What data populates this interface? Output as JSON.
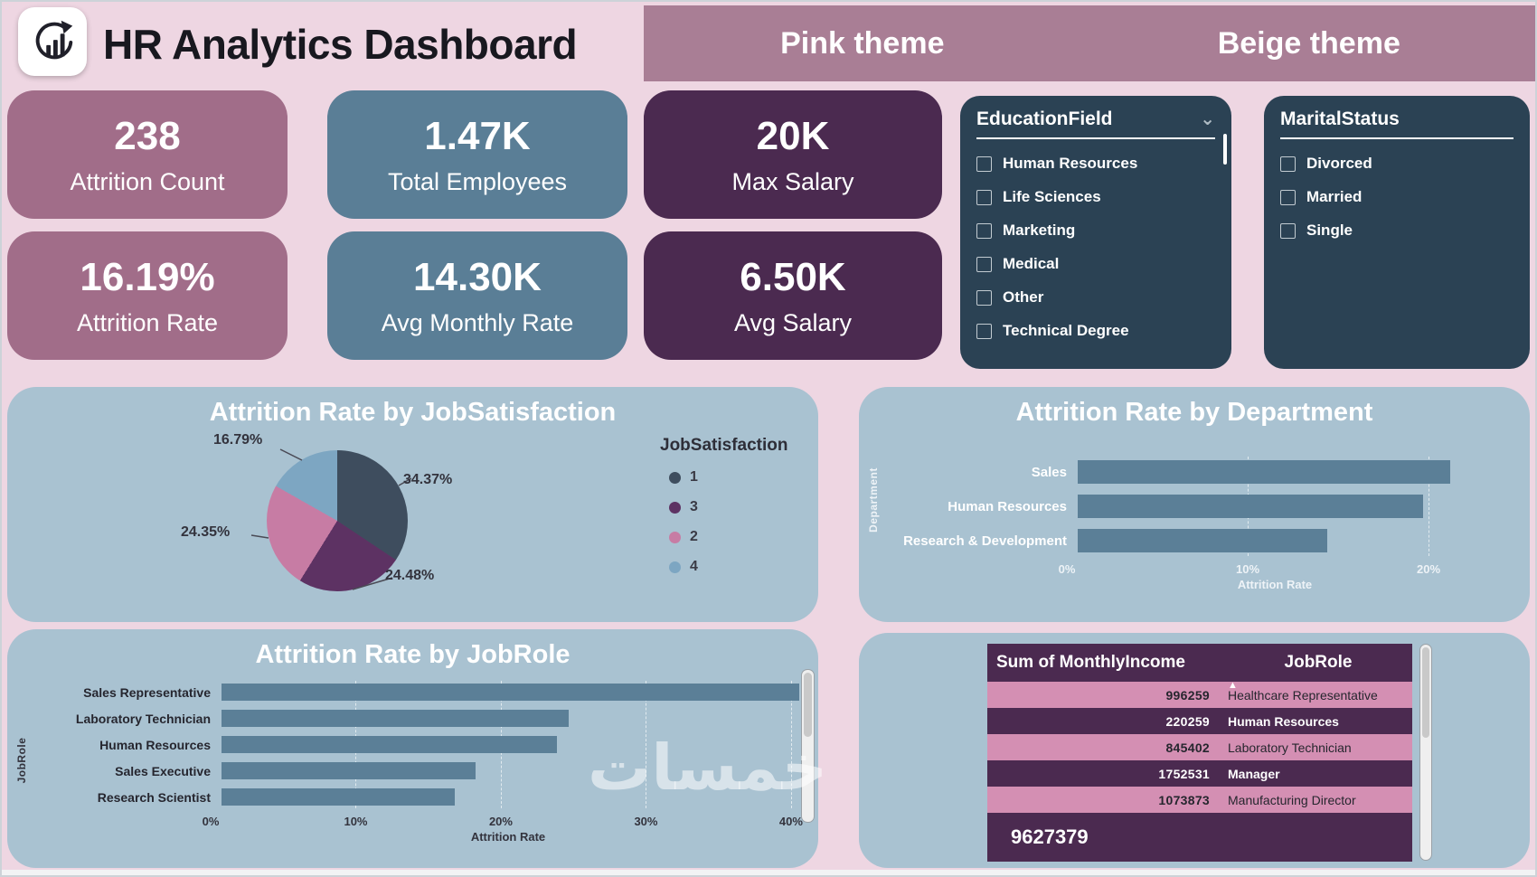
{
  "header": {
    "title": "HR Analytics Dashboard",
    "themes": [
      "Pink theme",
      "Beige theme"
    ]
  },
  "kpis": [
    {
      "value": "238",
      "label": "Attrition Count"
    },
    {
      "value": "1.47K",
      "label": "Total Employees"
    },
    {
      "value": "20K",
      "label": "Max Salary"
    },
    {
      "value": "16.19%",
      "label": "Attrition Rate"
    },
    {
      "value": "14.30K",
      "label": "Avg Monthly Rate"
    },
    {
      "value": "6.50K",
      "label": "Avg Salary"
    }
  ],
  "filters": {
    "education": {
      "title": "EducationField",
      "options": [
        "Human Resources",
        "Life Sciences",
        "Marketing",
        "Medical",
        "Other",
        "Technical Degree"
      ]
    },
    "marital": {
      "title": "MaritalStatus",
      "options": [
        "Divorced",
        "Married",
        "Single"
      ]
    }
  },
  "chart_data": [
    {
      "id": "job_satisfaction_pie",
      "type": "pie",
      "title": "Attrition Rate by JobSatisfaction",
      "legend_title": "JobSatisfaction",
      "slices": [
        {
          "label": "1",
          "pct": 34.37,
          "display": "34.37%",
          "color": "#3e4d5e"
        },
        {
          "label": "3",
          "pct": 24.48,
          "display": "24.48%",
          "color": "#5d3263"
        },
        {
          "label": "2",
          "pct": 24.35,
          "display": "24.35%",
          "color": "#c77ca4"
        },
        {
          "label": "4",
          "pct": 16.79,
          "display": "16.79%",
          "color": "#7da6c2"
        }
      ]
    },
    {
      "id": "department_bar",
      "type": "bar",
      "title": "Attrition Rate by Department",
      "xlabel": "Attrition Rate",
      "ylabel": "Department",
      "categories": [
        "Sales",
        "Human Resources",
        "Research & Development"
      ],
      "values": [
        20.6,
        19.1,
        13.8
      ],
      "ticks": [
        "0%",
        "10%",
        "20%"
      ],
      "xmax": 23,
      "bar_color": "#5b7f97",
      "legend_position": "none",
      "grid": true
    },
    {
      "id": "jobrole_bar",
      "type": "bar",
      "title": "Attrition Rate by JobRole",
      "xlabel": "Attrition Rate",
      "ylabel": "JobRole",
      "categories": [
        "Sales Representative",
        "Laboratory Technician",
        "Human Resources",
        "Sales Executive",
        "Research Scientist"
      ],
      "values": [
        39.8,
        23.9,
        23.1,
        17.5,
        16.1
      ],
      "ticks": [
        "0%",
        "10%",
        "20%",
        "30%",
        "40%"
      ],
      "xmax": 41,
      "bar_color": "#5b7f97",
      "legend_position": "none",
      "grid": true
    },
    {
      "id": "income_table",
      "type": "table",
      "columns": [
        "Sum of MonthlyIncome",
        "JobRole"
      ],
      "sort_indicator": "▲",
      "rows": [
        [
          "996259",
          "Healthcare Representative"
        ],
        [
          "220259",
          "Human Resources"
        ],
        [
          "845402",
          "Laboratory Technician"
        ],
        [
          "1752531",
          "Manager"
        ],
        [
          "1073873",
          "Manufacturing Director"
        ]
      ],
      "total": "9627379"
    }
  ],
  "colors": {
    "page_bg": "#eed6e2",
    "theme_band": "#a97e95",
    "kpi_mauve": "#a16d89",
    "kpi_blue": "#5a7e96",
    "kpi_purple": "#4b2a50",
    "slicer_bg": "#2b4254",
    "panel_bg": "#a9c2d1",
    "bar": "#5b7f97",
    "table_pink_row": "#d48fb3",
    "table_dark_row": "#4b2a50"
  },
  "watermark": "خمسات"
}
